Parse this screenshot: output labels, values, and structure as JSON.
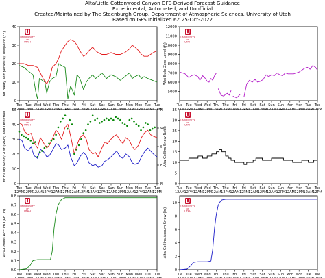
{
  "header": {
    "line1": "Alta/Little Cottonwood Canyon GFS-Derived Forecast Guidance",
    "line2": "Experimental, Automated, and Unofficial",
    "line3": "Created/Maintained by The Steenburgh Group, Department of Atmospheric Sciences, University of Utah",
    "line4": "Based on GFS Initialized 6Z 25-Oct-2022"
  },
  "logo": {
    "university": "UNIVERSITY",
    "of": "OF",
    "state": "UTAH"
  },
  "x_tick_days": [
    "Tue",
    "Tue",
    "Wed",
    "Wed",
    "Thu",
    "Thu",
    "Fri",
    "Fri",
    "Sat",
    "Sat",
    "Sun",
    "Sun",
    "Mon",
    "Mon",
    "Tue",
    "Tue"
  ],
  "x_tick_times": [
    "12AM",
    "12PM",
    "12AM",
    "12PM",
    "12AM",
    "12PM",
    "12AM",
    "12PM",
    "12AM",
    "12PM",
    "12AM",
    "12PM",
    "12AM",
    "12PM",
    "12AM",
    "12PM"
  ],
  "x_day_start": 0,
  "x_day_end": 15,
  "colors": {
    "red": "#e31a1c",
    "green": "#1a8a1a",
    "blue": "#1c1cc8",
    "magenta": "#b41cc8",
    "black": "#000000",
    "green_dots": "#0a8a0a"
  },
  "chart_data": [
    {
      "id": "temp",
      "type": "line",
      "title": "",
      "ylabel": "Mt Baldy Temperature/Dewpoint (°F)",
      "ylim": [
        0,
        40
      ],
      "yticks": [
        0,
        10,
        20,
        30,
        40
      ],
      "series": [
        {
          "color": "red",
          "x": [
            0,
            0.5,
            1,
            1.5,
            2,
            2.3,
            2.6,
            3,
            3.3,
            3.6,
            4,
            4.3,
            4.6,
            5,
            5.3,
            5.6,
            6,
            6.3,
            6.6,
            7,
            7.3,
            7.6,
            8,
            8.3,
            8.6,
            9,
            9.5,
            10,
            10.5,
            11,
            11.5,
            12,
            12.3,
            12.6,
            13,
            13.3,
            13.6,
            14,
            14.3,
            14.6,
            15
          ],
          "values": [
            20,
            20,
            19,
            19,
            18,
            15,
            12,
            9,
            12,
            18,
            20,
            23,
            27,
            30,
            32,
            33,
            32,
            30,
            27,
            24,
            25,
            27,
            29,
            27,
            26,
            25,
            25,
            26,
            25,
            25,
            26,
            28,
            30,
            29,
            27,
            25,
            24,
            24,
            25,
            26,
            27
          ]
        },
        {
          "color": "green",
          "x": [
            0,
            0.5,
            1,
            1.5,
            1.8,
            2,
            2.2,
            2.5,
            2.8,
            3,
            3.3,
            3.6,
            4,
            4.3,
            4.6,
            5,
            5.3,
            5.6,
            6,
            6.3,
            6.6,
            7,
            7.3,
            7.6,
            8,
            8.3,
            8.6,
            9,
            9.5,
            10,
            10.5,
            11,
            11.5,
            12,
            12.3,
            12.6,
            13,
            13.3,
            13.6,
            14,
            14.5,
            15
          ],
          "values": [
            19,
            18,
            16,
            14,
            5,
            1,
            12,
            11,
            10,
            4,
            10,
            12,
            13,
            20,
            19,
            18,
            1,
            8,
            3,
            14,
            12,
            6,
            10,
            12,
            14,
            12,
            13,
            15,
            12,
            14,
            13,
            11,
            13,
            15,
            12,
            13,
            14,
            12,
            13,
            12,
            11,
            10
          ]
        }
      ]
    },
    {
      "id": "snowlevel",
      "type": "line",
      "title": "",
      "ylabel": "Wet-Bulb Zero Level (ft)",
      "ylim": [
        4000,
        12000
      ],
      "yticks": [
        5000,
        6000,
        7000,
        8000,
        9000,
        10000,
        11000,
        12000
      ],
      "series": [
        {
          "color": "magenta",
          "x": [
            0,
            0.3,
            0.6,
            1,
            1.3,
            1.6,
            2,
            2.2,
            2.5,
            2.8,
            3,
            3.2,
            3.4,
            3.6,
            3.8,
            4,
            null,
            4.2,
            4.5,
            4.8,
            5,
            5.2,
            5.4,
            5.6,
            null,
            5.8,
            6.2,
            6.6,
            null,
            7,
            7.3,
            7.6,
            7.9,
            8.2,
            8.5,
            8.8,
            9.1,
            9.4,
            9.7,
            10,
            10.3,
            10.6,
            10.9,
            11.2,
            11.5,
            11.8,
            12.1,
            12.4,
            12.7,
            13,
            13.3,
            13.6,
            13.9,
            14.2,
            14.5,
            14.8,
            15
          ],
          "values": [
            7100,
            7000,
            6900,
            6500,
            6700,
            6800,
            6600,
            6200,
            6700,
            6400,
            6100,
            6000,
            6400,
            6200,
            6700,
            7000,
            null,
            5300,
            4600,
            4500,
            4700,
            4800,
            4600,
            5100,
            null,
            4500,
            4300,
            4700,
            null,
            4400,
            5800,
            6200,
            6000,
            6300,
            6000,
            6100,
            6300,
            6800,
            6600,
            6800,
            6700,
            7000,
            6800,
            6700,
            7000,
            6900,
            6900,
            6900,
            7000,
            7100,
            7300,
            7500,
            7600,
            7400,
            7800,
            7600,
            7300
          ]
        }
      ]
    },
    {
      "id": "wind",
      "type": "line",
      "title": "",
      "ylabel": "Mt Baldy Wind/Gust (MPH) and Direction",
      "ylim": [
        0,
        50
      ],
      "yticks": [
        0,
        10,
        20,
        30,
        40,
        50
      ],
      "right_ticks": [
        "N",
        "W",
        "S",
        "E",
        "N"
      ],
      "series": [
        {
          "color": "red",
          "x": [
            0,
            0.3,
            0.6,
            1,
            1.3,
            1.6,
            2,
            2.3,
            2.6,
            3,
            3.3,
            3.6,
            4,
            4.3,
            4.6,
            5,
            5.3,
            5.6,
            6,
            6.3,
            6.6,
            7,
            7.3,
            7.6,
            8,
            8.3,
            8.6,
            9,
            9.3,
            9.6,
            10,
            10.3,
            10.6,
            11,
            11.3,
            11.6,
            12,
            12.3,
            12.6,
            13,
            13.3,
            13.6,
            14,
            14.3,
            14.6,
            15
          ],
          "values": [
            41,
            40,
            35,
            33,
            34,
            28,
            24,
            31,
            28,
            24,
            26,
            30,
            36,
            34,
            30,
            38,
            40,
            32,
            20,
            26,
            31,
            33,
            30,
            23,
            20,
            21,
            18,
            24,
            28,
            27,
            30,
            32,
            33,
            29,
            27,
            31,
            29,
            25,
            23,
            26,
            31,
            34,
            36,
            33,
            32,
            31
          ]
        },
        {
          "color": "blue",
          "x": [
            0,
            0.3,
            0.6,
            1,
            1.3,
            1.6,
            2,
            2.3,
            2.6,
            3,
            3.3,
            3.6,
            4,
            4.3,
            4.6,
            5,
            5.3,
            5.6,
            6,
            6.3,
            6.6,
            7,
            7.3,
            7.6,
            8,
            8.3,
            8.6,
            9,
            9.3,
            9.6,
            10,
            10.3,
            10.6,
            11,
            11.3,
            11.6,
            12,
            12.3,
            12.6,
            13,
            13.3,
            13.6,
            14,
            14.3,
            14.6,
            15
          ],
          "values": [
            30,
            29,
            24,
            22,
            25,
            19,
            17,
            23,
            22,
            18,
            19,
            22,
            27,
            26,
            23,
            24,
            26,
            18,
            12,
            14,
            18,
            21,
            19,
            14,
            12,
            13,
            11,
            12,
            15,
            16,
            18,
            20,
            22,
            18,
            17,
            20,
            18,
            14,
            13,
            14,
            18,
            21,
            24,
            22,
            20,
            18
          ]
        },
        {
          "color": "green_dots",
          "style": "dots",
          "x": [
            0,
            0.25,
            0.5,
            0.75,
            1,
            1.25,
            1.5,
            1.75,
            2,
            2.25,
            2.5,
            2.75,
            3,
            3.25,
            3.5,
            3.75,
            4,
            4.25,
            4.5,
            4.75,
            5,
            5.25,
            5.5,
            5.75,
            6,
            6.25,
            6.5,
            6.75,
            7,
            7.25,
            7.5,
            7.75,
            8,
            8.25,
            8.5,
            8.75,
            9,
            9.25,
            9.5,
            9.75,
            10,
            10.25,
            10.5,
            10.75,
            11,
            11.25,
            11.5,
            11.75,
            12,
            12.25,
            12.5,
            12.75,
            13,
            13.25,
            13.5,
            13.75,
            14,
            14.25,
            14.5,
            14.75
          ],
          "values": [
            35,
            33,
            32,
            31,
            30,
            29,
            27,
            28,
            18,
            21,
            22,
            24,
            25,
            27,
            29,
            30,
            33,
            38,
            42,
            44,
            46,
            37,
            43,
            40,
            20,
            23,
            26,
            30,
            34,
            36,
            40,
            42,
            46,
            43,
            44,
            41,
            42,
            43,
            44,
            43,
            44,
            43,
            45,
            44,
            43,
            41,
            40,
            39,
            43,
            44,
            42,
            40,
            39,
            36,
            38,
            41,
            40,
            36,
            37,
            38
          ]
        }
      ]
    },
    {
      "id": "slr",
      "type": "line",
      "title": "",
      "ylabel": "Alta-Collins Snow Ratio",
      "ylim": [
        0,
        35
      ],
      "yticks": [
        0,
        5,
        10,
        15,
        20,
        25,
        30,
        35
      ],
      "series": [
        {
          "color": "black",
          "step": true,
          "x": [
            0,
            0.5,
            1,
            1.5,
            2,
            2.5,
            3,
            3.5,
            4,
            4.3,
            4.6,
            5,
            5.3,
            5.6,
            6,
            6.3,
            6.6,
            7,
            7.3,
            7.6,
            8,
            8.3,
            8.6,
            9,
            9.3,
            9.6,
            10,
            10.3,
            10.6,
            11,
            11.3,
            11.6,
            12,
            12.3,
            12.6,
            13,
            13.3,
            13.6,
            14,
            14.3,
            14.6,
            15
          ],
          "values": [
            11,
            11,
            12,
            12,
            13,
            12,
            13,
            14,
            15,
            16,
            15,
            13,
            12,
            11,
            10,
            10,
            10,
            9,
            10,
            10,
            11,
            12,
            12,
            11,
            11,
            11,
            12,
            12,
            12,
            12,
            11,
            11,
            11,
            10,
            10,
            10,
            11,
            11,
            10,
            10,
            11,
            11
          ]
        }
      ]
    },
    {
      "id": "qpf",
      "type": "line",
      "title": "",
      "ylabel": "Alta-Collins Accum QPF (in)",
      "ylim": [
        0,
        0.8
      ],
      "yticks": [
        0.0,
        0.1,
        0.2,
        0.3,
        0.4,
        0.5,
        0.6,
        0.7,
        0.8
      ],
      "series": [
        {
          "color": "green",
          "x": [
            0,
            0.8,
            1.2,
            1.5,
            2,
            3,
            3.4,
            3.6,
            3.8,
            4,
            4.2,
            4.4,
            4.6,
            5,
            5.5,
            6,
            15
          ],
          "values": [
            0,
            0.01,
            0.05,
            0.1,
            0.11,
            0.11,
            0.11,
            0.2,
            0.45,
            0.6,
            0.69,
            0.73,
            0.76,
            0.78,
            0.78,
            0.78,
            0.78
          ]
        }
      ]
    },
    {
      "id": "snow",
      "type": "line",
      "title": "",
      "ylabel": "Alta-Collins Accum Snow (in)",
      "ylim": [
        0,
        11
      ],
      "yticks": [
        0,
        2,
        4,
        6,
        8,
        10
      ],
      "series": [
        {
          "color": "blue",
          "x": [
            0,
            0.8,
            1.2,
            1.5,
            2,
            3,
            3.4,
            3.6,
            3.8,
            4,
            4.2,
            4.4,
            4.6,
            5,
            5.5,
            6,
            15
          ],
          "values": [
            0,
            0.1,
            0.6,
            1.1,
            1.2,
            1.2,
            1.3,
            3.0,
            6.2,
            8.3,
            9.6,
            10.1,
            10.4,
            10.5,
            10.5,
            10.5,
            10.5
          ]
        }
      ]
    }
  ]
}
